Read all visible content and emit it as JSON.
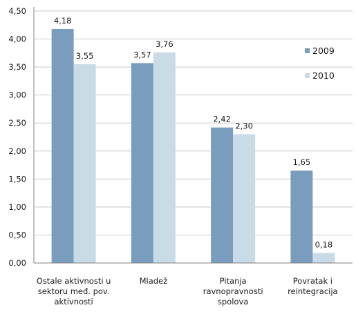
{
  "chart_data": {
    "type": "bar",
    "title": "",
    "xlabel": "",
    "ylabel": "",
    "ylim": [
      0,
      4.5
    ],
    "y_ticks": [
      "0,00",
      "0,50",
      "1,00",
      "1,50",
      "2,00",
      "2,50",
      "3,00",
      "3,50",
      "4,00",
      "4,50"
    ],
    "categories": [
      [
        "Ostale aktivnosti u",
        "sektoru međ. pov.",
        "aktivnosti"
      ],
      [
        "Mladež"
      ],
      [
        "Pitanja",
        "ravnopravnosti",
        "spolova"
      ],
      [
        "Povratak i",
        "reintegracija"
      ]
    ],
    "series": [
      {
        "name": "2009",
        "color": "#7a9cbd",
        "values": [
          4.18,
          3.57,
          2.42,
          1.65
        ],
        "labels": [
          "4,18",
          "3,57",
          "2,42",
          "1,65"
        ]
      },
      {
        "name": "2010",
        "color": "#c9dbe6",
        "values": [
          3.55,
          3.76,
          2.3,
          0.18
        ],
        "labels": [
          "3,55",
          "3,76",
          "2,30",
          "0,18"
        ]
      }
    ],
    "grid": true,
    "legend": "right"
  }
}
